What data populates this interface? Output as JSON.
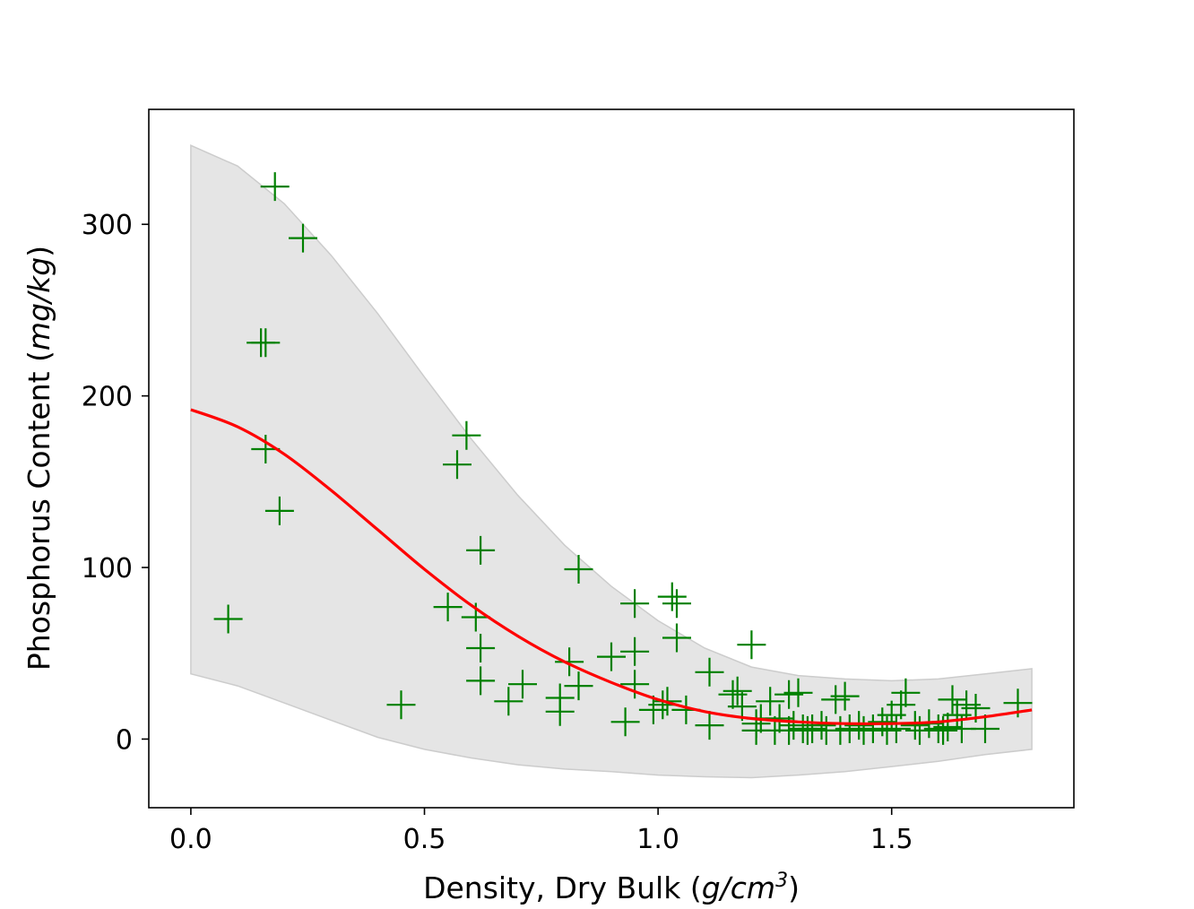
{
  "chart_data": {
    "type": "scatter",
    "xlabel_main": "Density, Dry Bulk (",
    "xlabel_unit": "g/cm",
    "xlabel_sup": "3",
    "xlabel_close": ")",
    "ylabel_main": "Phosphorus Content (",
    "ylabel_unit": "mg/kg",
    "ylabel_close": ")",
    "xlim": [
      -0.09,
      1.89
    ],
    "ylim": [
      -40,
      367
    ],
    "x_ticks": [
      0.0,
      0.5,
      1.0,
      1.5
    ],
    "x_tick_labels": [
      "0.0",
      "0.5",
      "1.0",
      "1.5"
    ],
    "y_ticks": [
      0,
      100,
      200,
      300
    ],
    "y_tick_labels": [
      "0",
      "100",
      "200",
      "300"
    ],
    "grid": false,
    "colors": {
      "points": "#008000",
      "fit": "#ff0000",
      "band": "#cccccc"
    },
    "series": [
      {
        "kind": "points",
        "marker": "plus",
        "x": [
          0.18,
          0.24,
          0.15,
          0.16,
          0.16,
          0.19,
          0.08,
          0.45,
          0.59,
          0.57,
          0.62,
          0.55,
          0.61,
          0.62,
          0.62,
          0.68,
          0.71,
          0.81,
          0.83,
          0.79,
          0.79,
          0.83,
          0.9,
          0.95,
          0.95,
          0.95,
          0.93,
          0.99,
          1.01,
          1.03,
          1.04,
          1.04,
          1.02,
          1.06,
          1.11,
          1.11,
          1.16,
          1.17,
          1.2,
          1.18,
          1.21,
          1.22,
          1.24,
          1.26,
          1.28,
          1.29,
          1.3,
          1.31,
          1.33,
          1.35,
          1.38,
          1.4,
          1.41,
          1.43,
          1.46,
          1.48,
          1.5,
          1.51,
          1.52,
          1.53,
          1.55,
          1.58,
          1.6,
          1.62,
          1.63,
          1.64,
          1.65,
          1.66,
          1.68,
          1.7,
          1.77,
          1.21,
          1.25,
          1.28,
          1.32,
          1.36,
          1.39,
          1.44,
          1.49,
          1.56,
          1.61
        ],
        "y": [
          322,
          292,
          231,
          231,
          169,
          133,
          70,
          20,
          177,
          160,
          110,
          77,
          71,
          53,
          34,
          22,
          32,
          45,
          99,
          24,
          16,
          31,
          48,
          79,
          51,
          32,
          10,
          17,
          20,
          83,
          79,
          59,
          22,
          17,
          39,
          8,
          26,
          28,
          55,
          19,
          9,
          12,
          22,
          12,
          26,
          8,
          27,
          6,
          6,
          8,
          23,
          25,
          6,
          8,
          6,
          10,
          14,
          6,
          20,
          27,
          8,
          9,
          6,
          7,
          23,
          14,
          6,
          20,
          18,
          6,
          21,
          5,
          5,
          5,
          5,
          5,
          5,
          5,
          5,
          5,
          5
        ]
      },
      {
        "kind": "fit",
        "x": [
          0.0,
          0.1,
          0.2,
          0.3,
          0.4,
          0.5,
          0.6,
          0.7,
          0.8,
          0.9,
          1.0,
          1.1,
          1.2,
          1.3,
          1.4,
          1.5,
          1.6,
          1.7,
          1.8
        ],
        "y": [
          192,
          182,
          166,
          145,
          122,
          99,
          78,
          60,
          45,
          33,
          23,
          16,
          12,
          10,
          9,
          9,
          10,
          13,
          17
        ]
      },
      {
        "kind": "band",
        "x": [
          0.0,
          0.1,
          0.2,
          0.3,
          0.4,
          0.5,
          0.6,
          0.7,
          0.8,
          0.9,
          1.0,
          1.1,
          1.2,
          1.3,
          1.4,
          1.5,
          1.6,
          1.7,
          1.8
        ],
        "lower": [
          38,
          31,
          21,
          11,
          1,
          -6,
          -11,
          -15,
          -17.5,
          -19,
          -21,
          -22,
          -22.5,
          -21,
          -19,
          -16,
          -13,
          -9,
          -6
        ],
        "upper": [
          346,
          334,
          312,
          282,
          248,
          211,
          175,
          142,
          113,
          89,
          69,
          53,
          42,
          37,
          35,
          34,
          35,
          38,
          41
        ]
      }
    ]
  }
}
